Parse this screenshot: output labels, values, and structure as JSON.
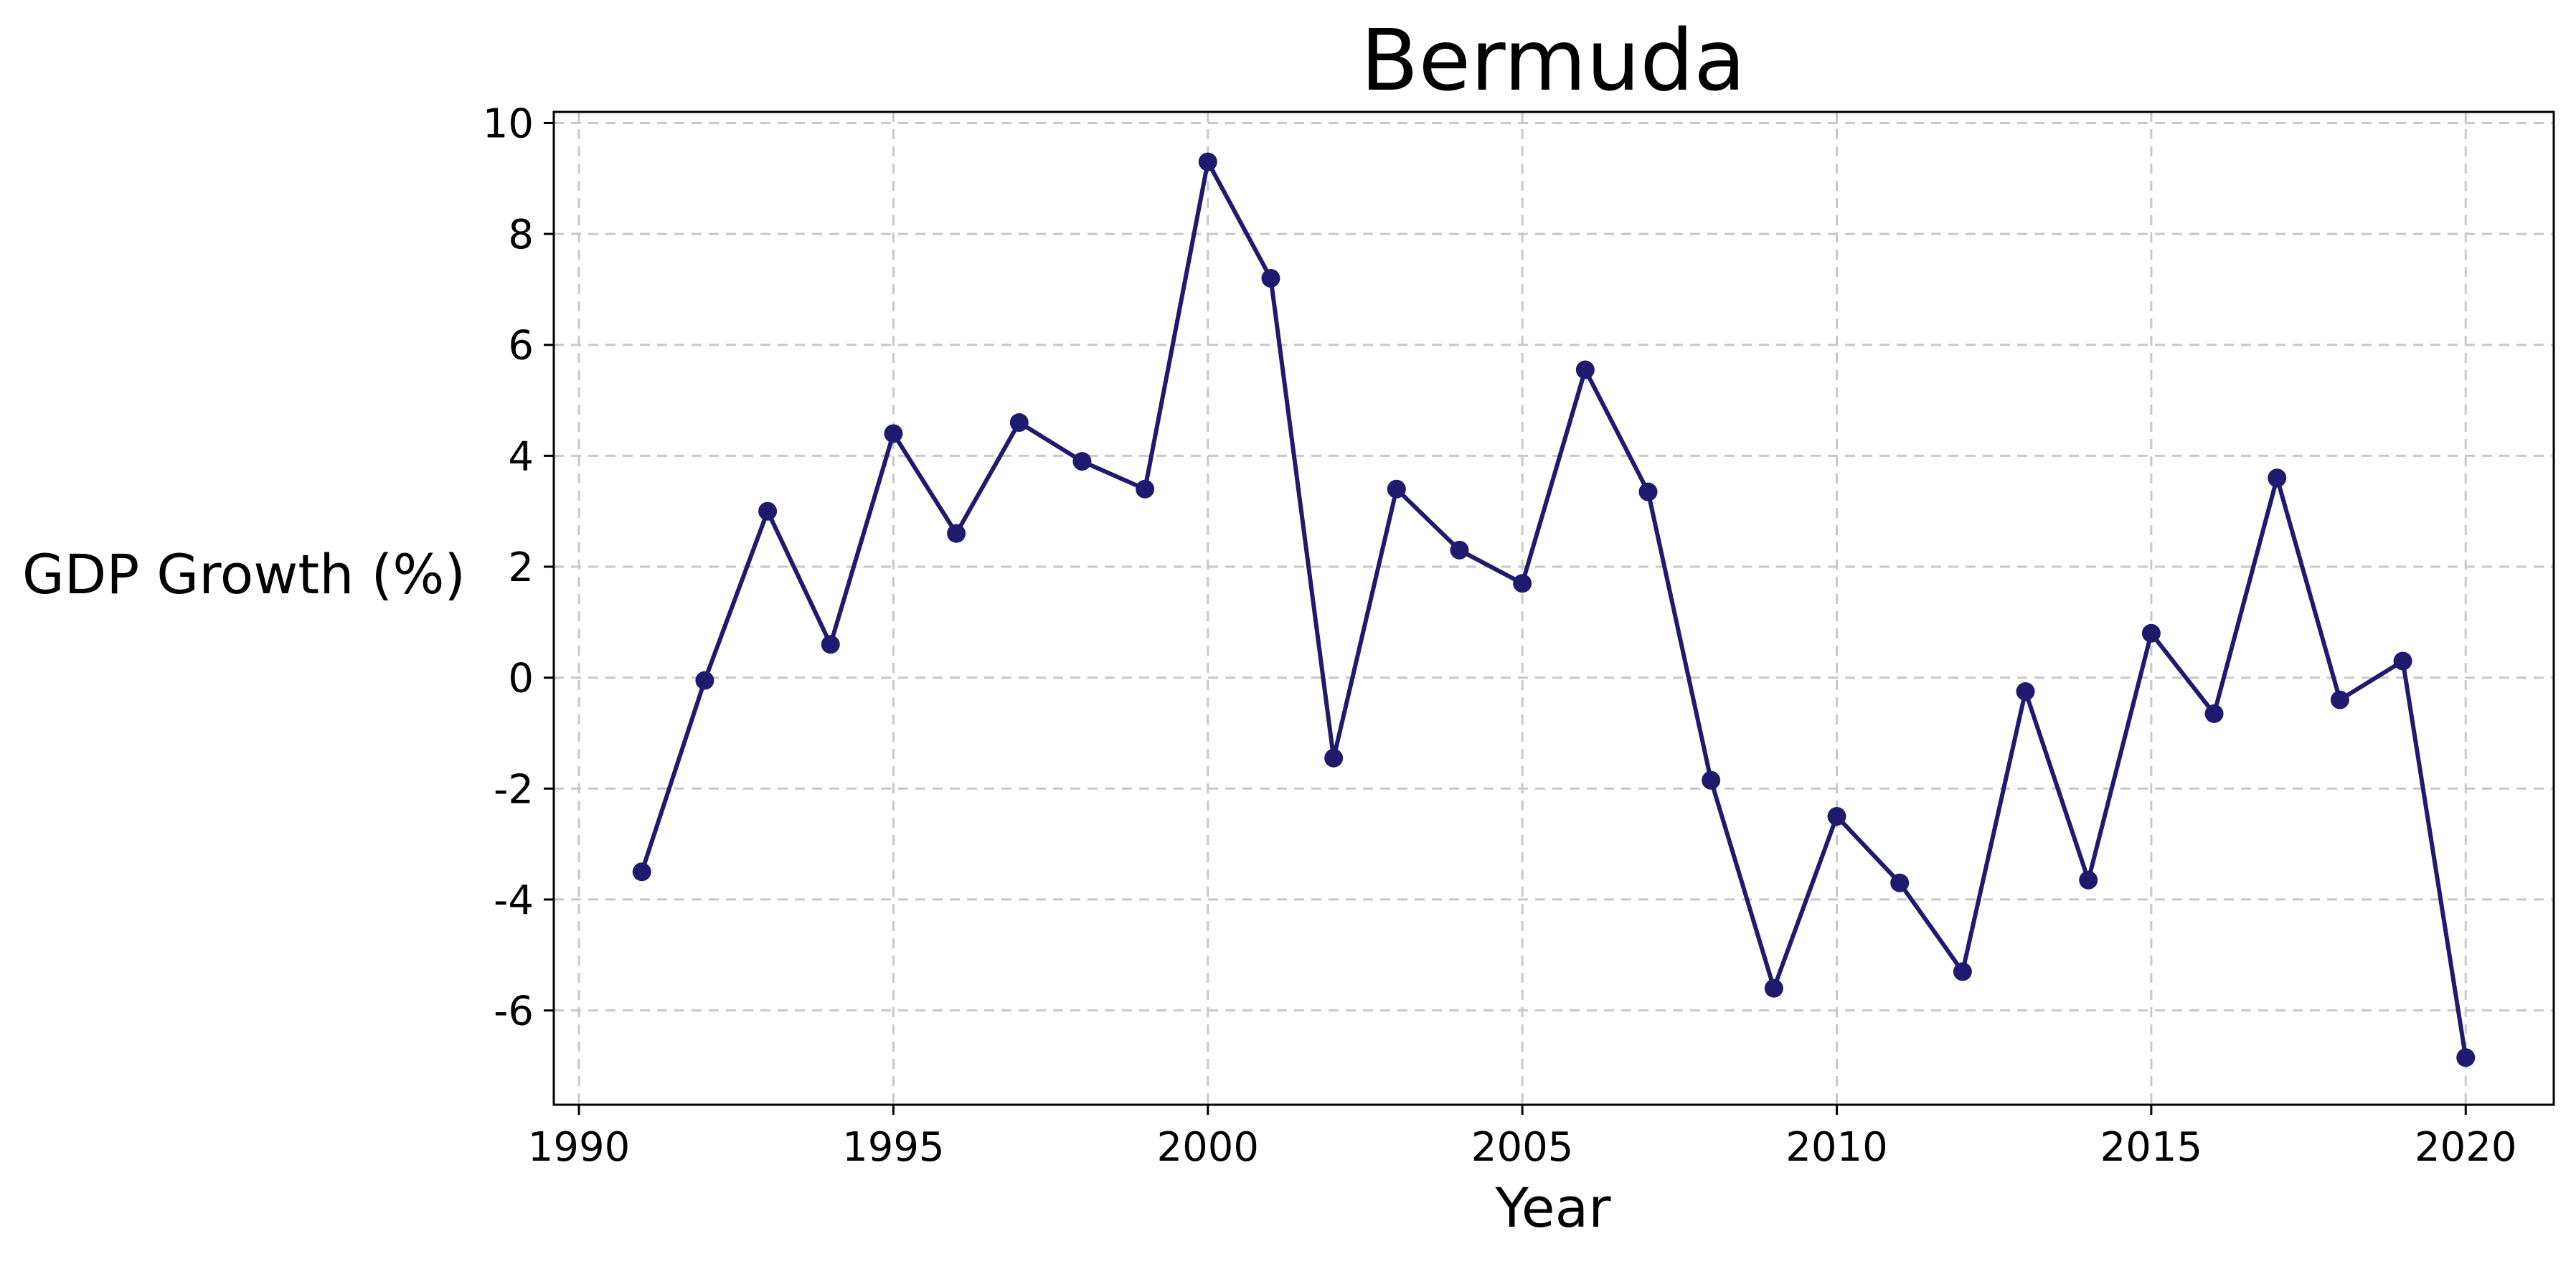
{
  "chart_data": {
    "type": "line",
    "title": "Bermuda",
    "xlabel": "Year",
    "ylabel": "GDP Growth (%)",
    "xlim": [
      1989.6,
      2021.4
    ],
    "ylim": [
      -7.7,
      10.2
    ],
    "xticks": [
      1990,
      1995,
      2000,
      2005,
      2010,
      2015,
      2020
    ],
    "yticks": [
      -6,
      -4,
      -2,
      0,
      2,
      4,
      6,
      8,
      10
    ],
    "grid": true,
    "color": "#1f1a6e",
    "series": [
      {
        "x": [
          1991,
          1992,
          1993,
          1994,
          1995,
          1996,
          1997,
          1998,
          1999,
          2000,
          2001,
          2002,
          2003,
          2004,
          2005,
          2006,
          2007,
          2008,
          2009,
          2010,
          2011,
          2012,
          2013,
          2014,
          2015,
          2016,
          2017,
          2018,
          2019,
          2020
        ],
        "values": [
          -3.5,
          -0.05,
          3.0,
          0.6,
          4.4,
          2.6,
          4.6,
          3.9,
          3.4,
          9.3,
          7.2,
          -1.45,
          3.4,
          2.3,
          1.7,
          5.55,
          3.35,
          -1.85,
          -5.6,
          -2.5,
          -3.7,
          -5.3,
          -0.25,
          -3.65,
          0.8,
          -0.65,
          3.6,
          -0.4,
          0.3,
          -6.85
        ]
      }
    ]
  }
}
